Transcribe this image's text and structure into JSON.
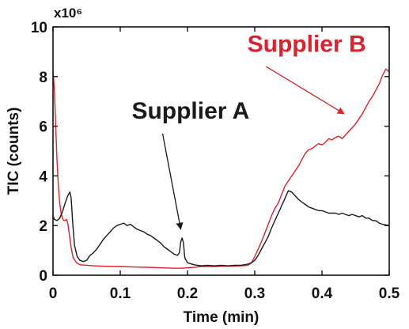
{
  "chart_data": {
    "type": "line",
    "xlabel": "Time (min)",
    "ylabel": "TIC (counts)",
    "y_multiplier": "x10⁶",
    "xlim": [
      0,
      0.5
    ],
    "ylim": [
      0,
      10
    ],
    "x_ticks": [
      0,
      0.1,
      0.2,
      0.3,
      0.4,
      0.5
    ],
    "x_tick_labels": [
      "0",
      "0.1",
      "0.2",
      "0.3",
      "0.4",
      "0.5"
    ],
    "y_ticks": [
      0,
      2,
      4,
      6,
      8,
      10
    ],
    "y_tick_labels": [
      "0",
      "2",
      "4",
      "6",
      "8",
      "10"
    ],
    "grid": false,
    "series": [
      {
        "name": "Supplier A",
        "color": "#1a1a1a",
        "points": [
          [
            0,
            2.4
          ],
          [
            0.002,
            2.25
          ],
          [
            0.006,
            2.2
          ],
          [
            0.01,
            2.3
          ],
          [
            0.014,
            2.55
          ],
          [
            0.018,
            2.9
          ],
          [
            0.022,
            3.2
          ],
          [
            0.025,
            3.35
          ],
          [
            0.027,
            3.1
          ],
          [
            0.029,
            2.2
          ],
          [
            0.032,
            1.2
          ],
          [
            0.036,
            0.75
          ],
          [
            0.04,
            0.6
          ],
          [
            0.045,
            0.55
          ],
          [
            0.05,
            0.6
          ],
          [
            0.055,
            0.8
          ],
          [
            0.06,
            0.9
          ],
          [
            0.065,
            1.05
          ],
          [
            0.07,
            1.25
          ],
          [
            0.075,
            1.45
          ],
          [
            0.08,
            1.6
          ],
          [
            0.085,
            1.75
          ],
          [
            0.09,
            1.9
          ],
          [
            0.095,
            2.0
          ],
          [
            0.1,
            2.05
          ],
          [
            0.105,
            2.1
          ],
          [
            0.11,
            2.0
          ],
          [
            0.115,
            2.05
          ],
          [
            0.12,
            1.95
          ],
          [
            0.125,
            1.85
          ],
          [
            0.13,
            1.8
          ],
          [
            0.135,
            1.75
          ],
          [
            0.14,
            1.65
          ],
          [
            0.145,
            1.6
          ],
          [
            0.15,
            1.5
          ],
          [
            0.155,
            1.4
          ],
          [
            0.16,
            1.3
          ],
          [
            0.165,
            1.15
          ],
          [
            0.17,
            1.05
          ],
          [
            0.175,
            0.95
          ],
          [
            0.18,
            0.85
          ],
          [
            0.185,
            0.8
          ],
          [
            0.188,
            0.9
          ],
          [
            0.19,
            1.35
          ],
          [
            0.192,
            1.5
          ],
          [
            0.194,
            1.3
          ],
          [
            0.196,
            0.7
          ],
          [
            0.2,
            0.5
          ],
          [
            0.21,
            0.42
          ],
          [
            0.22,
            0.38
          ],
          [
            0.23,
            0.4
          ],
          [
            0.24,
            0.38
          ],
          [
            0.25,
            0.4
          ],
          [
            0.26,
            0.38
          ],
          [
            0.27,
            0.4
          ],
          [
            0.28,
            0.4
          ],
          [
            0.29,
            0.45
          ],
          [
            0.295,
            0.5
          ],
          [
            0.3,
            0.6
          ],
          [
            0.305,
            0.8
          ],
          [
            0.31,
            1.05
          ],
          [
            0.315,
            1.3
          ],
          [
            0.32,
            1.55
          ],
          [
            0.325,
            1.9
          ],
          [
            0.33,
            2.2
          ],
          [
            0.335,
            2.5
          ],
          [
            0.34,
            2.8
          ],
          [
            0.345,
            3.1
          ],
          [
            0.35,
            3.4
          ],
          [
            0.355,
            3.35
          ],
          [
            0.36,
            3.2
          ],
          [
            0.365,
            3.05
          ],
          [
            0.37,
            2.95
          ],
          [
            0.375,
            2.85
          ],
          [
            0.38,
            2.75
          ],
          [
            0.385,
            2.7
          ],
          [
            0.39,
            2.65
          ],
          [
            0.395,
            2.6
          ],
          [
            0.4,
            2.6
          ],
          [
            0.405,
            2.55
          ],
          [
            0.41,
            2.5
          ],
          [
            0.415,
            2.5
          ],
          [
            0.42,
            2.5
          ],
          [
            0.425,
            2.45
          ],
          [
            0.43,
            2.5
          ],
          [
            0.435,
            2.45
          ],
          [
            0.44,
            2.4
          ],
          [
            0.445,
            2.45
          ],
          [
            0.45,
            2.4
          ],
          [
            0.455,
            2.35
          ],
          [
            0.46,
            2.4
          ],
          [
            0.465,
            2.3
          ],
          [
            0.47,
            2.3
          ],
          [
            0.475,
            2.2
          ],
          [
            0.48,
            2.2
          ],
          [
            0.485,
            2.1
          ],
          [
            0.49,
            2.05
          ],
          [
            0.5,
            2.0
          ]
        ]
      },
      {
        "name": "Supplier B",
        "color": "#e0202a",
        "points": [
          [
            0,
            8.2
          ],
          [
            0.002,
            7.5
          ],
          [
            0.004,
            6.0
          ],
          [
            0.006,
            4.6
          ],
          [
            0.008,
            3.6
          ],
          [
            0.01,
            2.9
          ],
          [
            0.012,
            2.5
          ],
          [
            0.014,
            2.3
          ],
          [
            0.016,
            2.2
          ],
          [
            0.018,
            2.2
          ],
          [
            0.02,
            2.25
          ],
          [
            0.022,
            2.1
          ],
          [
            0.024,
            1.7
          ],
          [
            0.027,
            1.1
          ],
          [
            0.03,
            0.7
          ],
          [
            0.035,
            0.5
          ],
          [
            0.04,
            0.42
          ],
          [
            0.05,
            0.4
          ],
          [
            0.06,
            0.38
          ],
          [
            0.08,
            0.36
          ],
          [
            0.1,
            0.35
          ],
          [
            0.12,
            0.33
          ],
          [
            0.14,
            0.32
          ],
          [
            0.16,
            0.3
          ],
          [
            0.18,
            0.28
          ],
          [
            0.19,
            0.28
          ],
          [
            0.2,
            0.3
          ],
          [
            0.21,
            0.32
          ],
          [
            0.22,
            0.35
          ],
          [
            0.23,
            0.35
          ],
          [
            0.24,
            0.35
          ],
          [
            0.25,
            0.36
          ],
          [
            0.26,
            0.36
          ],
          [
            0.27,
            0.37
          ],
          [
            0.28,
            0.38
          ],
          [
            0.29,
            0.4
          ],
          [
            0.295,
            0.5
          ],
          [
            0.3,
            0.75
          ],
          [
            0.305,
            1.05
          ],
          [
            0.31,
            1.35
          ],
          [
            0.315,
            1.7
          ],
          [
            0.32,
            2.05
          ],
          [
            0.325,
            2.4
          ],
          [
            0.33,
            2.7
          ],
          [
            0.335,
            2.9
          ],
          [
            0.34,
            3.25
          ],
          [
            0.345,
            3.6
          ],
          [
            0.35,
            3.8
          ],
          [
            0.355,
            4.0
          ],
          [
            0.36,
            4.2
          ],
          [
            0.365,
            4.4
          ],
          [
            0.37,
            4.65
          ],
          [
            0.375,
            4.9
          ],
          [
            0.38,
            5.05
          ],
          [
            0.385,
            5.1
          ],
          [
            0.39,
            5.2
          ],
          [
            0.395,
            5.3
          ],
          [
            0.4,
            5.25
          ],
          [
            0.405,
            5.35
          ],
          [
            0.41,
            5.5
          ],
          [
            0.415,
            5.45
          ],
          [
            0.42,
            5.55
          ],
          [
            0.425,
            5.6
          ],
          [
            0.43,
            5.5
          ],
          [
            0.435,
            5.65
          ],
          [
            0.44,
            5.8
          ],
          [
            0.445,
            5.95
          ],
          [
            0.45,
            6.1
          ],
          [
            0.455,
            6.3
          ],
          [
            0.46,
            6.5
          ],
          [
            0.465,
            6.75
          ],
          [
            0.47,
            7.0
          ],
          [
            0.475,
            7.2
          ],
          [
            0.48,
            7.45
          ],
          [
            0.485,
            7.7
          ],
          [
            0.49,
            8.05
          ],
          [
            0.495,
            8.3
          ],
          [
            0.5,
            8.2
          ]
        ]
      }
    ],
    "annotations": [
      {
        "text": "Supplier A",
        "series": "Supplier A",
        "color": "#1a1a1a",
        "label_at": [
          0.117,
          6.3
        ],
        "arrow_from": [
          0.163,
          5.7
        ],
        "arrow_to": [
          0.19,
          1.85
        ]
      },
      {
        "text": "Supplier B",
        "series": "Supplier B",
        "color": "#e0202a",
        "label_at": [
          0.289,
          9.0
        ],
        "arrow_from": [
          0.317,
          8.4
        ],
        "arrow_to": [
          0.433,
          6.5
        ]
      }
    ]
  }
}
